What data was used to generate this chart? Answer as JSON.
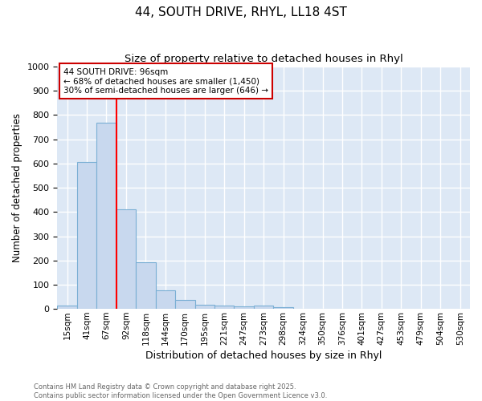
{
  "title": "44, SOUTH DRIVE, RHYL, LL18 4ST",
  "subtitle": "Size of property relative to detached houses in Rhyl",
  "xlabel": "Distribution of detached houses by size in Rhyl",
  "ylabel": "Number of detached properties",
  "categories": [
    "15sqm",
    "41sqm",
    "67sqm",
    "92sqm",
    "118sqm",
    "144sqm",
    "170sqm",
    "195sqm",
    "221sqm",
    "247sqm",
    "273sqm",
    "298sqm",
    "324sqm",
    "350sqm",
    "376sqm",
    "401sqm",
    "427sqm",
    "453sqm",
    "479sqm",
    "504sqm",
    "530sqm"
  ],
  "values": [
    15,
    605,
    770,
    410,
    193,
    75,
    38,
    18,
    15,
    12,
    15,
    7,
    0,
    0,
    0,
    0,
    0,
    0,
    0,
    0,
    0
  ],
  "bar_color": "#c8d8ee",
  "bar_edge_color": "#7aafd4",
  "ylim": [
    0,
    1000
  ],
  "yticks": [
    0,
    100,
    200,
    300,
    400,
    500,
    600,
    700,
    800,
    900,
    1000
  ],
  "red_line_x": 3.0,
  "annotation_title": "44 SOUTH DRIVE: 96sqm",
  "annotation_line1": "← 68% of detached houses are smaller (1,450)",
  "annotation_line2": "30% of semi-detached houses are larger (646) →",
  "annotation_box_edgecolor": "#cc0000",
  "footer_line1": "Contains HM Land Registry data © Crown copyright and database right 2025.",
  "footer_line2": "Contains public sector information licensed under the Open Government Licence v3.0.",
  "fig_bg_color": "#ffffff",
  "plot_bg_color": "#dde8f5"
}
